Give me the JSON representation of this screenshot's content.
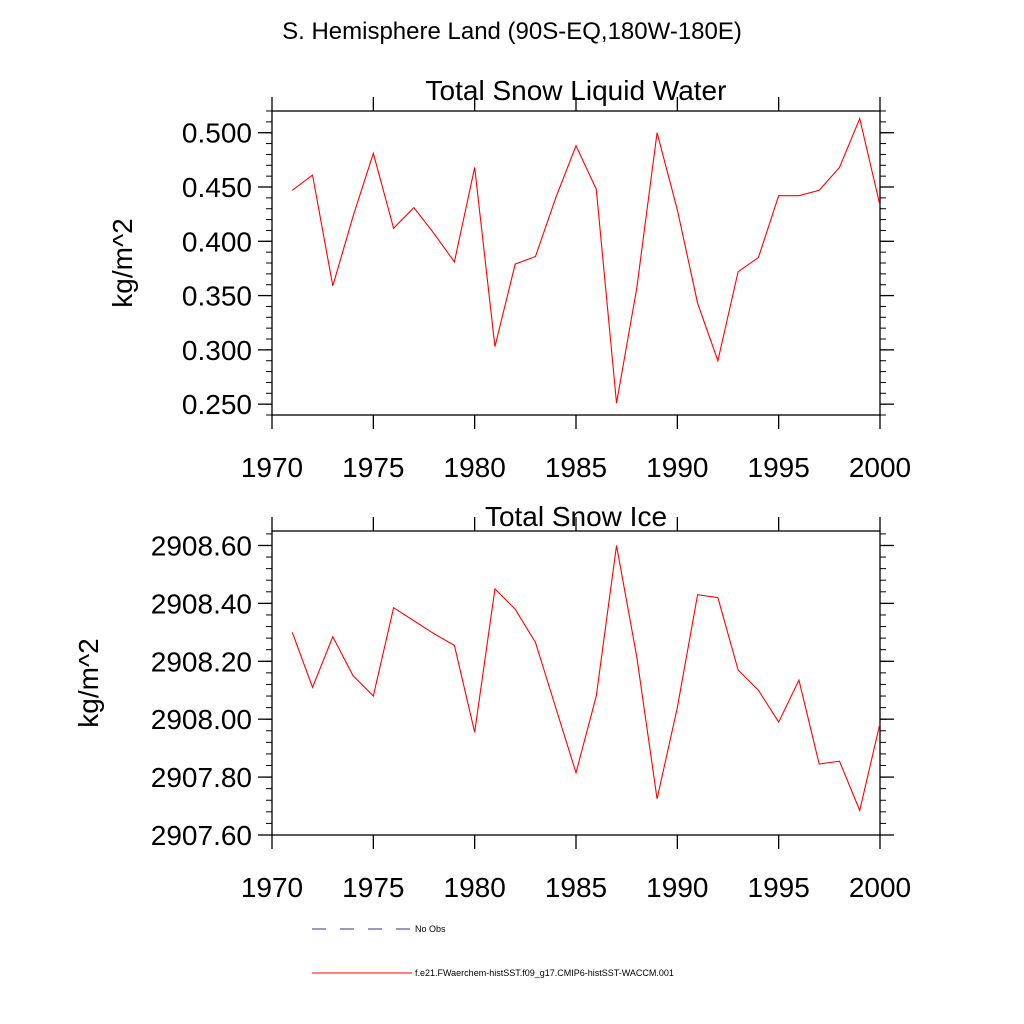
{
  "figure": {
    "main_title": "S. Hemisphere Land (90S-EQ,180W-180E)",
    "colors": {
      "model_line": "#ff0000",
      "obs_line": "#2b3a8c",
      "axis": "#000000"
    },
    "legend": {
      "obs_label": "No Obs",
      "model_label": "f.e21.FWaerchem-histSST.f09_g17.CMIP6-histSST-WACCM.001"
    }
  },
  "chart_data": [
    {
      "type": "line",
      "title": "Total Snow Liquid Water",
      "xlabel": "",
      "ylabel": "kg/m^2",
      "xlim": [
        1970,
        2000
      ],
      "ylim": [
        0.24,
        0.52
      ],
      "xticks": [
        1970,
        1975,
        1980,
        1985,
        1990,
        1995,
        2000
      ],
      "xtick_labels": [
        "1970",
        "1975",
        "1980",
        "1985",
        "1990",
        "1995",
        "2000"
      ],
      "yticks": [
        0.25,
        0.3,
        0.35,
        0.4,
        0.45,
        0.5
      ],
      "ytick_labels": [
        "0.250",
        "0.300",
        "0.350",
        "0.400",
        "0.450",
        "0.500"
      ],
      "grid": false,
      "series": [
        {
          "name": "f.e21.FWaerchem-histSST.f09_g17.CMIP6-histSST-WACCM.001",
          "x": [
            1971,
            1972,
            1973,
            1974,
            1975,
            1976,
            1977,
            1978,
            1979,
            1980,
            1981,
            1982,
            1983,
            1984,
            1985,
            1986,
            1987,
            1988,
            1989,
            1990,
            1991,
            1992,
            1993,
            1994,
            1995,
            1996,
            1997,
            1998,
            1999,
            2000
          ],
          "y": [
            0.447,
            0.461,
            0.359,
            0.423,
            0.481,
            0.412,
            0.431,
            0.407,
            0.381,
            0.468,
            0.303,
            0.379,
            0.386,
            0.44,
            0.488,
            0.448,
            0.251,
            0.357,
            0.5,
            0.429,
            0.343,
            0.29,
            0.372,
            0.385,
            0.442,
            0.442,
            0.447,
            0.468,
            0.513,
            0.433
          ]
        }
      ]
    },
    {
      "type": "line",
      "title": "Total Snow Ice",
      "xlabel": "",
      "ylabel": "kg/m^2",
      "xlim": [
        1970,
        2000
      ],
      "ylim": [
        2907.6,
        2908.65
      ],
      "xticks": [
        1970,
        1975,
        1980,
        1985,
        1990,
        1995,
        2000
      ],
      "xtick_labels": [
        "1970",
        "1975",
        "1980",
        "1985",
        "1990",
        "1995",
        "2000"
      ],
      "yticks": [
        2907.6,
        2907.8,
        2908.0,
        2908.2,
        2908.4,
        2908.6
      ],
      "ytick_labels": [
        "2907.60",
        "2907.80",
        "2908.00",
        "2908.20",
        "2908.40",
        "2908.60"
      ],
      "grid": false,
      "series": [
        {
          "name": "f.e21.FWaerchem-histSST.f09_g17.CMIP6-histSST-WACCM.001",
          "x": [
            1971,
            1972,
            1973,
            1974,
            1975,
            1976,
            1977,
            1978,
            1979,
            1980,
            1981,
            1982,
            1983,
            1984,
            1985,
            1986,
            1987,
            1988,
            1989,
            1990,
            1991,
            1992,
            1993,
            1994,
            1995,
            1996,
            1997,
            1998,
            1999,
            2000
          ],
          "y": [
            2908.3,
            2908.11,
            2908.285,
            2908.15,
            2908.08,
            2908.385,
            2908.34,
            2908.295,
            2908.255,
            2907.955,
            2908.45,
            2908.38,
            2908.265,
            2908.04,
            2907.815,
            2908.08,
            2908.6,
            2908.215,
            2907.725,
            2908.04,
            2908.43,
            2908.42,
            2908.17,
            2908.1,
            2907.99,
            2908.135,
            2907.845,
            2907.855,
            2907.685,
            2907.985
          ]
        }
      ]
    }
  ]
}
